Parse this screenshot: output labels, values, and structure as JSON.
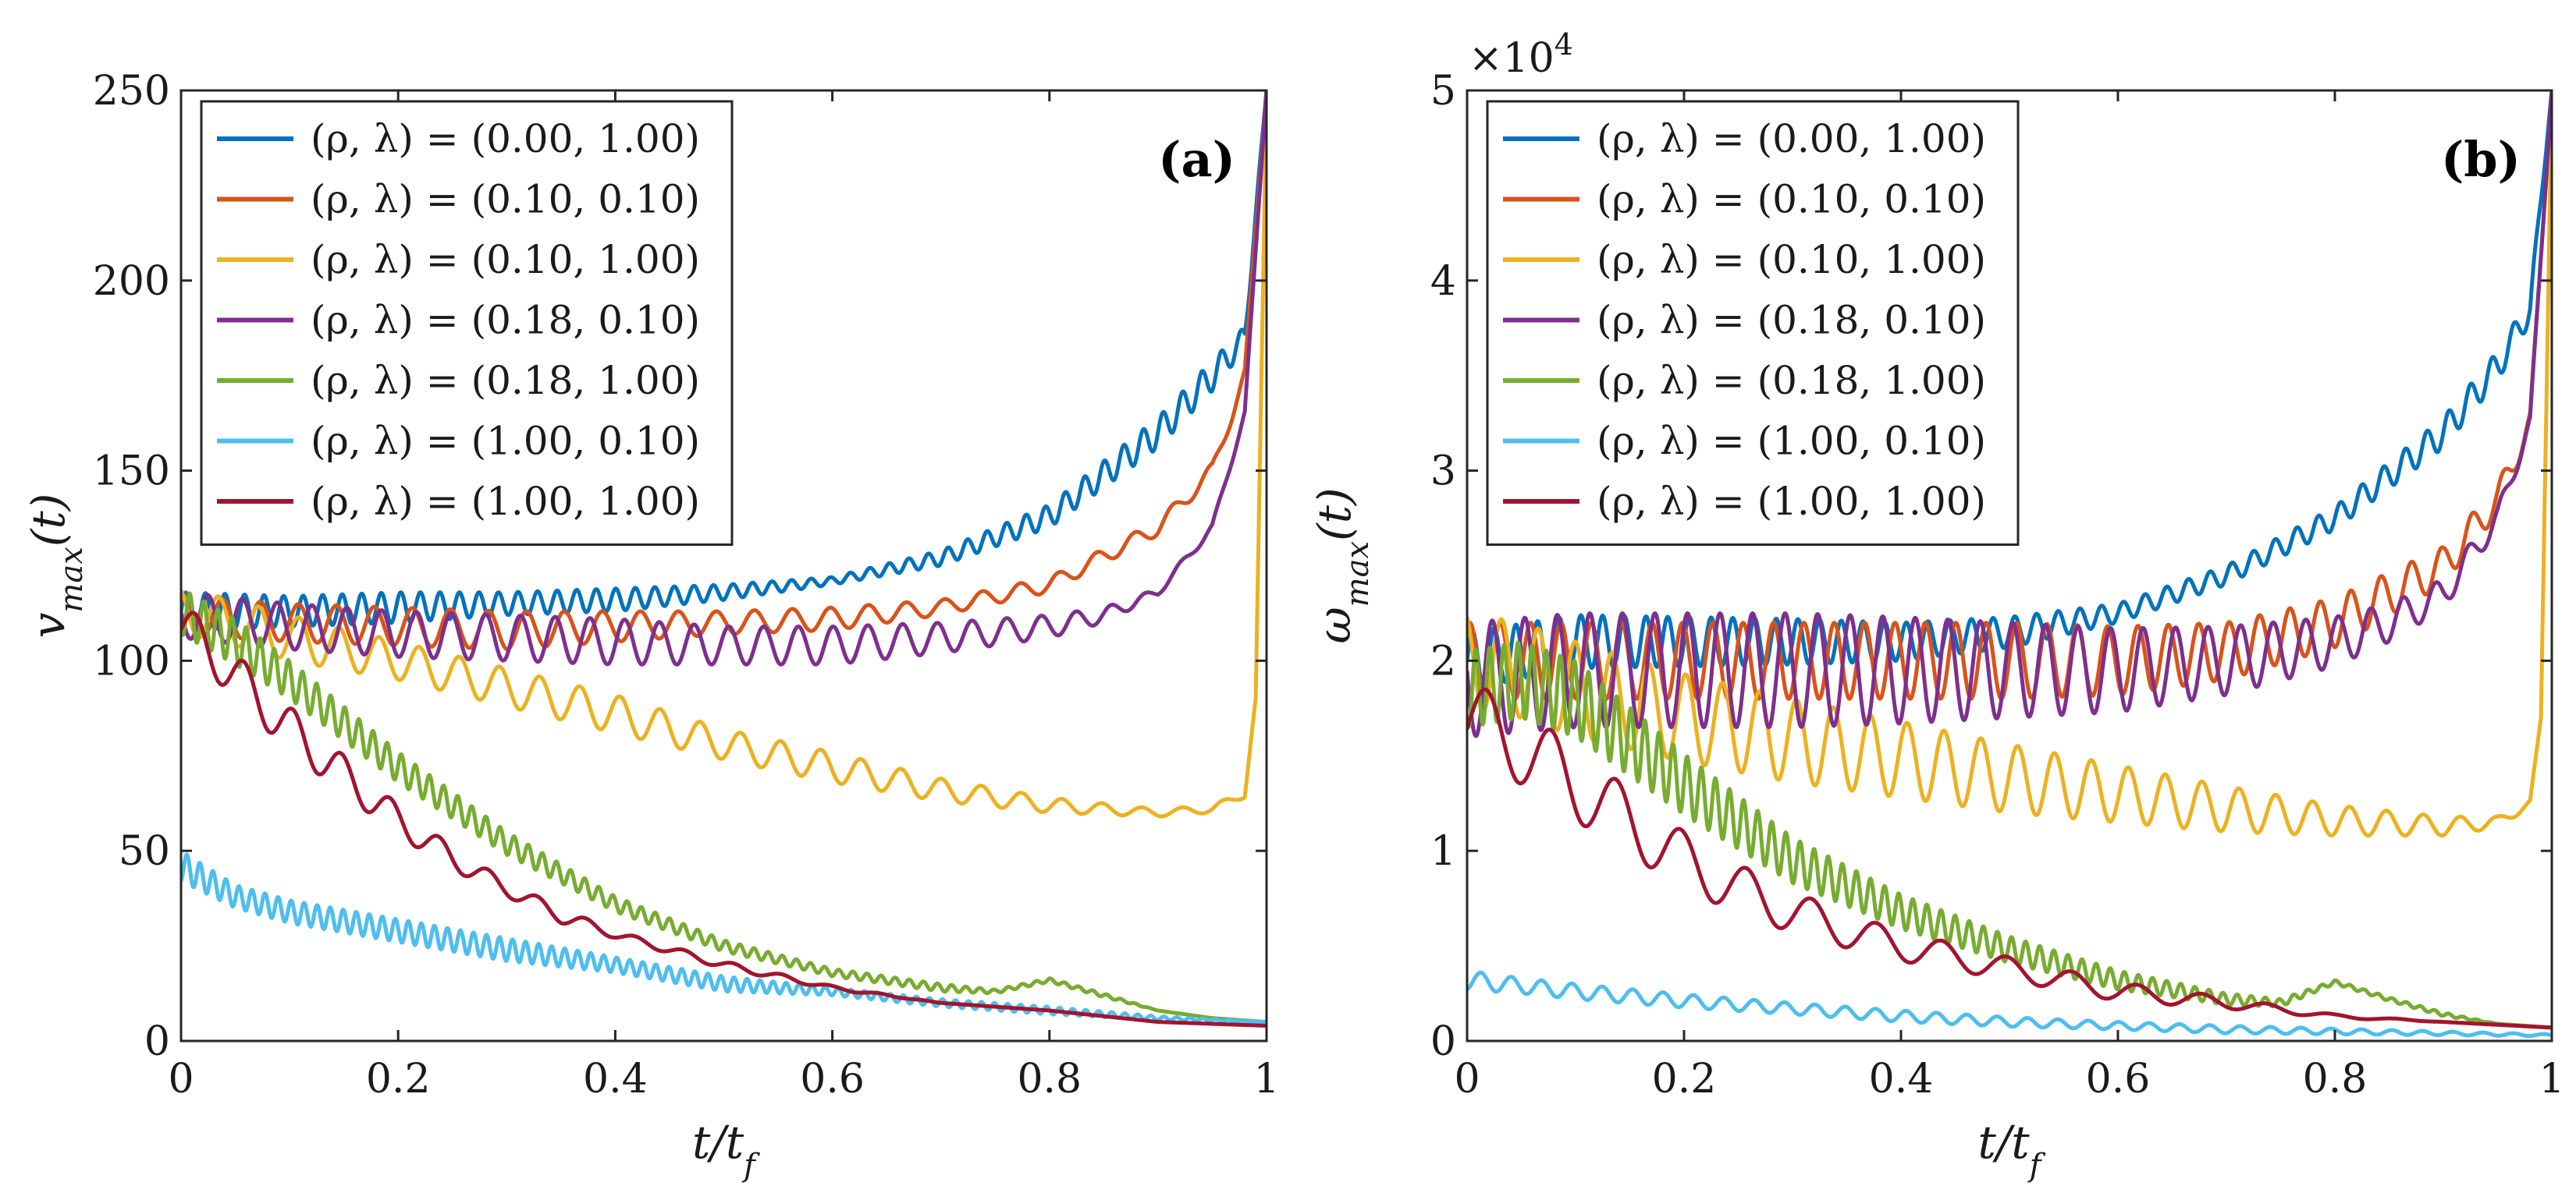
{
  "chart_data": [
    {
      "type": "line",
      "panel_label": "(a)",
      "xlabel": "t/t_f",
      "ylabel": "v_max(t)",
      "xlim": [
        0,
        1
      ],
      "ylim": [
        0,
        250
      ],
      "xticks": [
        0,
        0.2,
        0.4,
        0.6,
        0.8,
        1
      ],
      "xtick_labels": [
        "0",
        "0.2",
        "0.4",
        "0.6",
        "0.8",
        "1"
      ],
      "yticks": [
        0,
        50,
        100,
        150,
        200,
        250
      ],
      "ytick_labels": [
        "0",
        "50",
        "100",
        "150",
        "200",
        "250"
      ],
      "legend_position": "top-left",
      "series": [
        {
          "name": "(ρ, λ) = (0.00, 1.00)",
          "color": "#0072BD",
          "x": [
            0,
            0.1,
            0.2,
            0.3,
            0.4,
            0.5,
            0.6,
            0.7,
            0.8,
            0.9,
            0.95,
            0.98,
            1.0
          ],
          "y": [
            113,
            113,
            114,
            115,
            116,
            118,
            121,
            127,
            138,
            160,
            175,
            185,
            250
          ],
          "osc_amp": [
            5,
            4,
            4,
            3,
            3,
            2,
            1,
            2,
            3,
            4,
            4,
            3,
            0
          ],
          "osc_period": 0.018
        },
        {
          "name": "(ρ, λ) = (0.10, 0.10)",
          "color": "#D95319",
          "x": [
            0,
            0.1,
            0.2,
            0.3,
            0.4,
            0.5,
            0.6,
            0.7,
            0.8,
            0.9,
            0.95,
            0.98,
            1.0
          ],
          "y": [
            112,
            110,
            109,
            108,
            109,
            110,
            111,
            114,
            120,
            135,
            150,
            175,
            250
          ],
          "osc_amp": [
            5,
            5,
            5,
            5,
            4,
            3,
            3,
            2,
            2,
            2,
            2,
            2,
            0
          ],
          "osc_period": 0.035
        },
        {
          "name": "(ρ, λ) = (0.10, 1.00)",
          "color": "#EDB120",
          "x": [
            0,
            0.05,
            0.1,
            0.2,
            0.3,
            0.4,
            0.5,
            0.6,
            0.7,
            0.8,
            0.9,
            0.95,
            0.98,
            0.99,
            1.0
          ],
          "y": [
            113,
            110,
            106,
            100,
            93,
            86,
            78,
            72,
            66,
            62,
            60,
            61,
            65,
            90,
            250
          ],
          "osc_amp": [
            6,
            6,
            6,
            5,
            5,
            5,
            4,
            4,
            3,
            2,
            1,
            1,
            1,
            0,
            0
          ],
          "osc_period": 0.037
        },
        {
          "name": "(ρ, λ) = (0.18, 0.10)",
          "color": "#7E2F8E",
          "x": [
            0,
            0.1,
            0.2,
            0.3,
            0.4,
            0.5,
            0.6,
            0.7,
            0.8,
            0.85,
            0.9,
            0.95,
            0.98,
            1.0
          ],
          "y": [
            112,
            109,
            107,
            106,
            105,
            104,
            104,
            106,
            109,
            112,
            118,
            135,
            165,
            250
          ],
          "osc_amp": [
            6,
            6,
            6,
            6,
            6,
            5,
            5,
            4,
            3,
            2,
            1,
            1,
            1,
            0
          ],
          "osc_period": 0.032
        },
        {
          "name": "(ρ, λ) = (0.18, 1.00)",
          "color": "#77AC30",
          "x": [
            0,
            0.05,
            0.1,
            0.2,
            0.3,
            0.4,
            0.5,
            0.6,
            0.7,
            0.75,
            0.8,
            0.85,
            0.9,
            0.95,
            1.0
          ],
          "y": [
            113,
            105,
            95,
            72,
            52,
            36,
            25,
            18,
            14,
            13,
            16,
            12,
            8,
            6,
            5
          ],
          "osc_amp": [
            6,
            6,
            5,
            4,
            3,
            2,
            1.5,
            1,
            1,
            0.5,
            0.5,
            0.5,
            0,
            0,
            0
          ],
          "osc_period": 0.013
        },
        {
          "name": "(ρ, λ) = (1.00, 0.10)",
          "color": "#4DBEEE",
          "x": [
            0,
            0.05,
            0.1,
            0.2,
            0.3,
            0.4,
            0.5,
            0.6,
            0.7,
            0.8,
            0.9,
            1.0
          ],
          "y": [
            46,
            38,
            34,
            29,
            24,
            20,
            15,
            13,
            10,
            8,
            6,
            5
          ],
          "osc_amp": [
            4,
            3,
            3,
            3,
            3,
            2,
            2,
            1,
            1,
            1,
            0.5,
            0
          ],
          "osc_period": 0.012
        },
        {
          "name": "(ρ, λ) = (1.00, 1.00)",
          "color": "#A2142F",
          "x": [
            0,
            0.05,
            0.1,
            0.15,
            0.2,
            0.25,
            0.3,
            0.35,
            0.4,
            0.5,
            0.6,
            0.7,
            0.8,
            0.9,
            1.0
          ],
          "y": [
            110,
            96,
            82,
            70,
            58,
            48,
            40,
            33,
            28,
            20,
            14,
            10,
            8,
            5,
            4
          ],
          "osc_amp": [
            6,
            6,
            6,
            5,
            4,
            3,
            2,
            2,
            1,
            1,
            0.5,
            0,
            0,
            0,
            0
          ],
          "osc_period": 0.045
        }
      ]
    },
    {
      "type": "line",
      "panel_label": "(b)",
      "xlabel": "t/t_f",
      "ylabel": "ω_max(t)",
      "xlim": [
        0,
        1
      ],
      "ylim": [
        0,
        50000
      ],
      "multiplier": "×10^4",
      "xticks": [
        0,
        0.2,
        0.4,
        0.6,
        0.8,
        1
      ],
      "xtick_labels": [
        "0",
        "0.2",
        "0.4",
        "0.6",
        "0.8",
        "1"
      ],
      "yticks": [
        0,
        10000,
        20000,
        30000,
        40000,
        50000
      ],
      "ytick_labels": [
        "0",
        "1",
        "2",
        "3",
        "4",
        "5"
      ],
      "legend_position": "top-left",
      "series": [
        {
          "name": "(ρ, λ) = (0.00, 1.00)",
          "color": "#0072BD",
          "x": [
            0,
            0.1,
            0.2,
            0.3,
            0.4,
            0.5,
            0.6,
            0.7,
            0.8,
            0.9,
            0.95,
            0.98,
            1.0
          ],
          "y": [
            20000,
            21000,
            21000,
            21000,
            21000,
            21500,
            22500,
            24500,
            27500,
            32000,
            35500,
            38500,
            50000
          ],
          "osc_amp": [
            1500,
            1400,
            1300,
            1200,
            1000,
            800,
            500,
            500,
            600,
            800,
            800,
            700,
            0
          ],
          "osc_period": 0.02
        },
        {
          "name": "(ρ, λ) = (0.10, 0.10)",
          "color": "#D95319",
          "x": [
            0,
            0.1,
            0.2,
            0.3,
            0.4,
            0.5,
            0.6,
            0.7,
            0.8,
            0.9,
            0.95,
            0.98,
            1.0
          ],
          "y": [
            20000,
            20000,
            20000,
            20000,
            20000,
            20000,
            20000,
            20500,
            22000,
            25000,
            28500,
            32500,
            50000
          ],
          "osc_amp": [
            2000,
            2000,
            2000,
            2000,
            2000,
            2000,
            1800,
            1500,
            1300,
            1000,
            800,
            600,
            0
          ],
          "osc_period": 0.028
        },
        {
          "name": "(ρ, λ) = (0.10, 1.00)",
          "color": "#EDB120",
          "x": [
            0,
            0.05,
            0.1,
            0.2,
            0.3,
            0.4,
            0.5,
            0.6,
            0.7,
            0.8,
            0.9,
            0.95,
            0.98,
            0.99,
            1.0
          ],
          "y": [
            20000,
            19500,
            18500,
            17000,
            15800,
            14800,
            13800,
            13000,
            12200,
            11600,
            11300,
            11500,
            12500,
            17000,
            50000
          ],
          "osc_amp": [
            2500,
            2500,
            2500,
            2300,
            2200,
            2000,
            1800,
            1500,
            1200,
            800,
            500,
            300,
            200,
            0,
            0
          ],
          "osc_period": 0.034
        },
        {
          "name": "(ρ, λ) = (0.18, 0.10)",
          "color": "#7E2F8E",
          "x": [
            0,
            0.1,
            0.2,
            0.3,
            0.4,
            0.5,
            0.6,
            0.7,
            0.8,
            0.85,
            0.9,
            0.95,
            0.98,
            1.0
          ],
          "y": [
            19000,
            19500,
            19500,
            19500,
            19500,
            19500,
            19500,
            20000,
            21000,
            22000,
            23500,
            27500,
            32500,
            50000
          ],
          "osc_amp": [
            3000,
            3000,
            3000,
            3000,
            2800,
            2500,
            2200,
            1800,
            1300,
            1000,
            800,
            600,
            400,
            0
          ],
          "osc_period": 0.03
        },
        {
          "name": "(ρ, λ) = (0.18, 1.00)",
          "color": "#77AC30",
          "x": [
            0,
            0.05,
            0.1,
            0.2,
            0.3,
            0.4,
            0.5,
            0.6,
            0.7,
            0.75,
            0.8,
            0.85,
            0.9,
            0.95,
            1.0
          ],
          "y": [
            18500,
            19000,
            18000,
            13500,
            9500,
            6800,
            4800,
            3200,
            2200,
            2000,
            3100,
            2200,
            1400,
            900,
            700
          ],
          "osc_amp": [
            2000,
            2000,
            2000,
            1600,
            1200,
            900,
            700,
            500,
            300,
            200,
            100,
            100,
            100,
            0,
            0
          ],
          "osc_period": 0.013
        },
        {
          "name": "(ρ, λ) = (1.00, 0.10)",
          "color": "#4DBEEE",
          "x": [
            0,
            0.05,
            0.1,
            0.2,
            0.3,
            0.4,
            0.5,
            0.6,
            0.7,
            0.8,
            0.9,
            1.0
          ],
          "y": [
            3200,
            2900,
            2600,
            2100,
            1700,
            1300,
            1000,
            800,
            600,
            500,
            400,
            300
          ],
          "osc_amp": [
            500,
            400,
            400,
            350,
            300,
            300,
            250,
            200,
            200,
            150,
            100,
            50
          ],
          "osc_period": 0.028
        },
        {
          "name": "(ρ, λ) = (1.00, 1.00)",
          "color": "#A2142F",
          "x": [
            0,
            0.05,
            0.1,
            0.15,
            0.2,
            0.25,
            0.3,
            0.35,
            0.4,
            0.5,
            0.6,
            0.7,
            0.8,
            0.9,
            1.0
          ],
          "y": [
            17000,
            15500,
            13500,
            11500,
            9500,
            8000,
            6800,
            5800,
            5000,
            3800,
            2600,
            2000,
            1300,
            1000,
            700
          ],
          "osc_amp": [
            2000,
            2000,
            1900,
            1700,
            1500,
            1300,
            1100,
            900,
            800,
            600,
            500,
            300,
            100,
            0,
            0
          ],
          "osc_period": 0.06
        }
      ]
    }
  ]
}
